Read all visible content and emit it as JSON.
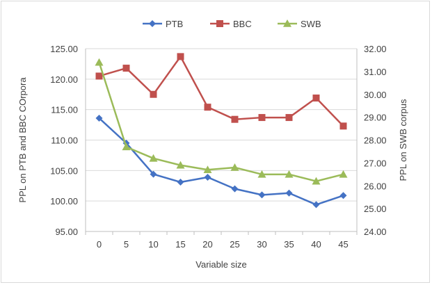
{
  "chart_data": {
    "type": "line",
    "x": [
      "0",
      "5",
      "10",
      "15",
      "20",
      "25",
      "30",
      "35",
      "40",
      "45"
    ],
    "xlabel": "Variable size",
    "ylabel_left": "PPL on PTB and BBC COrpora",
    "ylabel_right": "PPL on SWB corpus",
    "ylim_left": [
      95,
      125
    ],
    "ylim_right": [
      24,
      32
    ],
    "yticks_left": [
      "95.00",
      "100.00",
      "105.00",
      "110.00",
      "115.00",
      "120.00",
      "125.00"
    ],
    "yticks_right": [
      "24.00",
      "25.00",
      "26.00",
      "27.00",
      "28.00",
      "29.00",
      "30.00",
      "31.00",
      "32.00"
    ],
    "grid": true,
    "legend_position": "top",
    "series": [
      {
        "name": "PTB",
        "axis": "left",
        "color": "#4472c4",
        "marker": "diamond",
        "values": [
          113.6,
          109.5,
          104.4,
          103.1,
          103.9,
          102.0,
          101.0,
          101.3,
          99.4,
          100.9
        ]
      },
      {
        "name": "BBC",
        "axis": "left",
        "color": "#c0504d",
        "marker": "square",
        "values": [
          120.5,
          121.8,
          117.5,
          123.7,
          115.4,
          113.4,
          113.7,
          113.7,
          116.9,
          112.3
        ]
      },
      {
        "name": "SWB",
        "axis": "right",
        "color": "#9bbb59",
        "marker": "triangle",
        "values": [
          31.4,
          27.7,
          27.2,
          26.9,
          26.7,
          26.8,
          26.5,
          26.5,
          26.2,
          26.5
        ]
      }
    ]
  }
}
